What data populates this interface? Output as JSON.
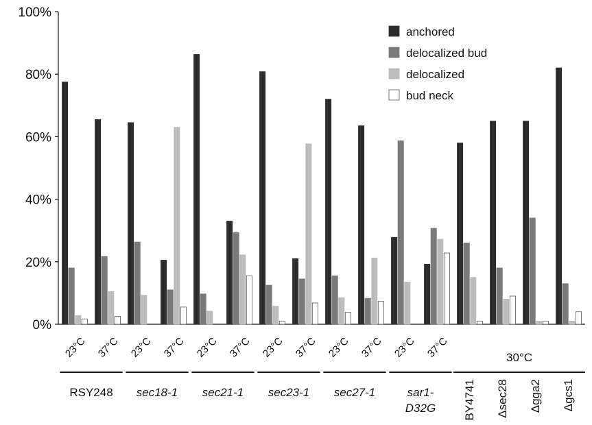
{
  "chart_data": {
    "type": "bar",
    "ylim": [
      0,
      100
    ],
    "y_tick_values": [
      0,
      20,
      40,
      60,
      80,
      100
    ],
    "y_tick_labels": [
      "0%",
      "20%",
      "40%",
      "60%",
      "80%",
      "100%"
    ],
    "grid": false,
    "legend_position": "top-right",
    "categories": [
      "23°C",
      "37°C",
      "23°C",
      "37°C",
      "23°C",
      "37°C",
      "23°C",
      "37°C",
      "23°C",
      "37°C",
      "23°C",
      "37°C",
      "",
      "",
      "",
      ""
    ],
    "series": [
      {
        "name": "anchored",
        "color": "#2d2d2d",
        "values": [
          77.5,
          65.5,
          64.5,
          20.5,
          86.3,
          33,
          80.8,
          21,
          72,
          63.5,
          27.8,
          19.2,
          58,
          65,
          65,
          82
        ]
      },
      {
        "name": "delocalized bud",
        "color": "#7a7a7a",
        "values": [
          18,
          21.7,
          26.3,
          11,
          9.7,
          29.3,
          12.5,
          14.5,
          15.5,
          8.3,
          58.7,
          30.7,
          26,
          18,
          34,
          13
        ]
      },
      {
        "name": "delocalized",
        "color": "#bdbdbd",
        "values": [
          2.8,
          10.5,
          9.3,
          63,
          4.2,
          22.2,
          5.8,
          57.7,
          8.5,
          21.2,
          13.5,
          27.2,
          15,
          8,
          1,
          1
        ]
      },
      {
        "name": "bud neck",
        "color": "#ffffff",
        "values": [
          1.7,
          2.5,
          0,
          5.5,
          0,
          15.5,
          1,
          6.8,
          3.8,
          7.3,
          0,
          22.8,
          1,
          9,
          1,
          4
        ]
      }
    ],
    "groups": [
      {
        "label_lines": [
          "RSY248"
        ],
        "italic": false,
        "start": 0,
        "end": 1
      },
      {
        "label_lines": [
          "sec18-1"
        ],
        "italic": true,
        "start": 2,
        "end": 3
      },
      {
        "label_lines": [
          "sec21-1"
        ],
        "italic": true,
        "start": 4,
        "end": 5
      },
      {
        "label_lines": [
          "sec23-1"
        ],
        "italic": true,
        "start": 6,
        "end": 7
      },
      {
        "label_lines": [
          "sec27-1"
        ],
        "italic": true,
        "start": 8,
        "end": 9
      },
      {
        "label_lines": [
          "sar1-",
          "D32G"
        ],
        "italic": true,
        "start": 10,
        "end": 11
      }
    ],
    "temperature_group": {
      "label": "30°C",
      "start": 12,
      "end": 15
    },
    "strain_labels": [
      "BY4741",
      "Δsec28",
      "Δgga2",
      "Δgcs1"
    ]
  }
}
